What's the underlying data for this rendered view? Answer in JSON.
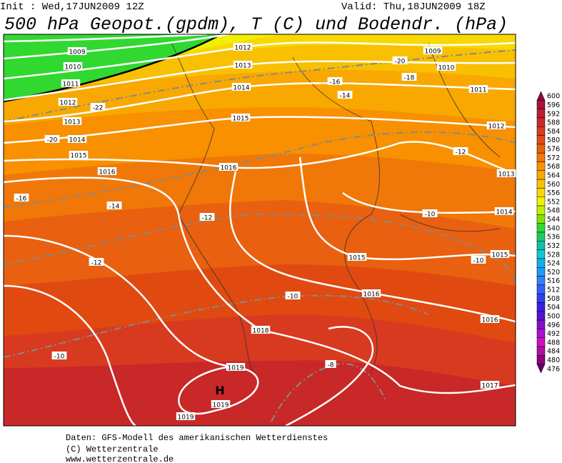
{
  "header": {
    "init": "Init : Wed,17JUN2009 12Z",
    "valid": "Valid: Thu,18JUN2009 18Z",
    "title": "500 hPa Geopot.(gpdm), T (C) und Bodendr. (hPa)"
  },
  "map": {
    "isobar_labels": [
      "1009",
      "1010",
      "1011",
      "1012",
      "1013",
      "1014",
      "1015",
      "1016",
      "1012",
      "1013",
      "1014",
      "1015",
      "1009",
      "1010",
      "1011",
      "1012",
      "1013",
      "1014",
      "1015",
      "1016",
      "1015",
      "1016",
      "1016",
      "1018",
      "1019",
      "1019",
      "1019",
      "1017"
    ],
    "temperature_labels": [
      "-20",
      "-18",
      "-16",
      "-14",
      "-22",
      "-20",
      "-14",
      "-12",
      "-12",
      "-16",
      "-10",
      "-10",
      "-10",
      "-10",
      "-8",
      "-12"
    ],
    "high_symbol": "H"
  },
  "colorbar": {
    "levels": [
      600,
      596,
      592,
      588,
      584,
      580,
      576,
      572,
      568,
      564,
      560,
      556,
      552,
      548,
      544,
      540,
      536,
      532,
      528,
      524,
      520,
      516,
      512,
      508,
      504,
      500,
      496,
      492,
      488,
      484,
      480,
      476
    ],
    "colors": [
      "#8c0a3c",
      "#a8143a",
      "#c01c34",
      "#cc2a28",
      "#d83a1e",
      "#e04c12",
      "#e8600c",
      "#f07808",
      "#f89000",
      "#f8a800",
      "#f8c000",
      "#f8d800",
      "#f0f000",
      "#c0f000",
      "#80e400",
      "#30d830",
      "#20c868",
      "#10c0a8",
      "#10c8d0",
      "#10b0e8",
      "#2098f8",
      "#3080f8",
      "#3060f8",
      "#3040f0",
      "#3820e0",
      "#5810d0",
      "#8010d0",
      "#b010d0",
      "#d010c0",
      "#b010a0",
      "#900080",
      "#600060"
    ]
  },
  "footer": [
    "Daten: GFS-Modell des amerikanischen Wetterdienstes",
    "(C) Wetterzentrale",
    "www.wetterzentrale.de"
  ]
}
